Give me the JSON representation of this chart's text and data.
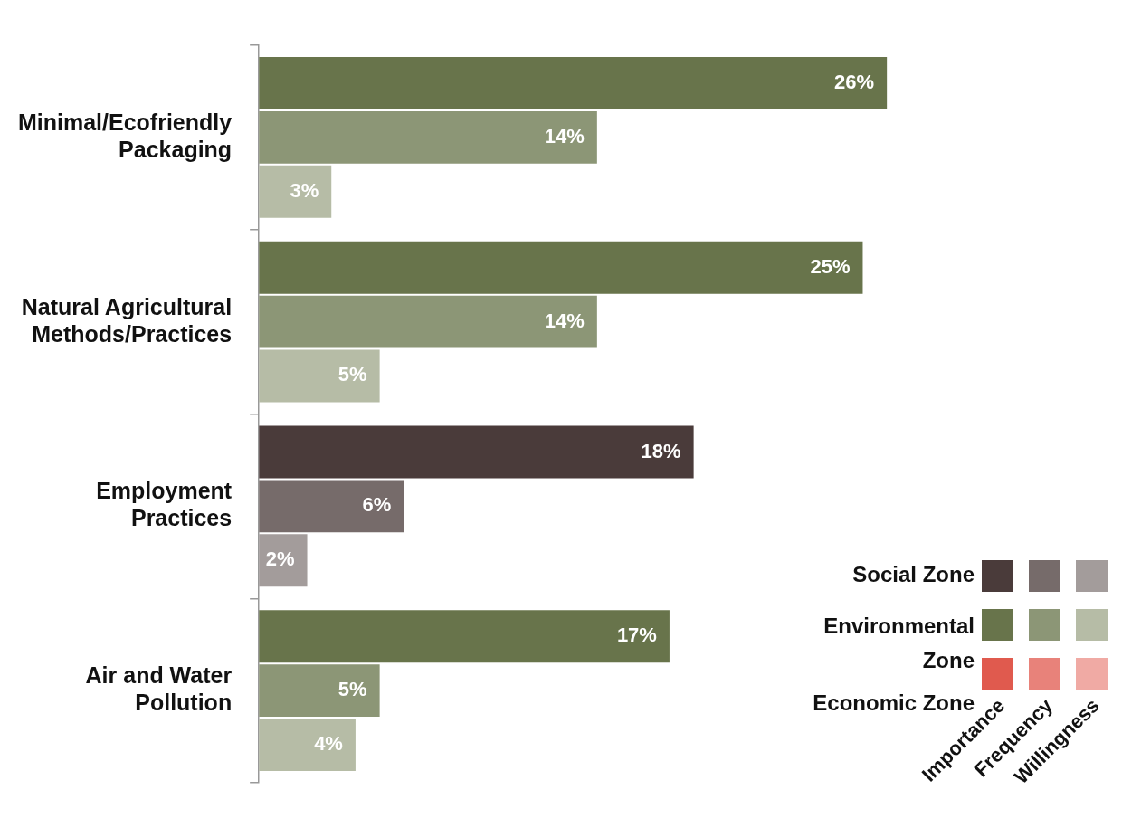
{
  "chart_data": {
    "type": "bar",
    "orientation": "horizontal",
    "categories": [
      "Minimal/Ecofriendly Packaging",
      "Natural Agricultural Methods/Practices",
      "Employment Practices",
      "Air and Water Pollution"
    ],
    "series": [
      {
        "name": "Importance",
        "color": "#68744b",
        "colors": [
          "#68744b",
          "#68744b",
          "#4a3b3a",
          "#68744b"
        ],
        "values": [
          26,
          25,
          18,
          17
        ],
        "value_labels": [
          "26%",
          "25%",
          "18%",
          "17%"
        ]
      },
      {
        "name": "Frequency",
        "color": "#8c9676",
        "colors": [
          "#8c9676",
          "#8c9676",
          "#766b6a",
          "#8c9676"
        ],
        "values": [
          14,
          14,
          6,
          5
        ],
        "value_labels": [
          "14%",
          "14%",
          "6%",
          "5%"
        ]
      },
      {
        "name": "Willingness",
        "color": "#b6bca6",
        "colors": [
          "#b6bca6",
          "#b6bca6",
          "#a39c9b",
          "#b6bca6"
        ],
        "values": [
          3,
          5,
          2,
          4
        ],
        "value_labels": [
          "3%",
          "5%",
          "2%",
          "4%"
        ]
      }
    ],
    "tick_labels": "y",
    "legend": "bottom right",
    "annotations": [
      "Social Zone",
      "Environmental Zone",
      "Economic Zone"
    ]
  }
}
